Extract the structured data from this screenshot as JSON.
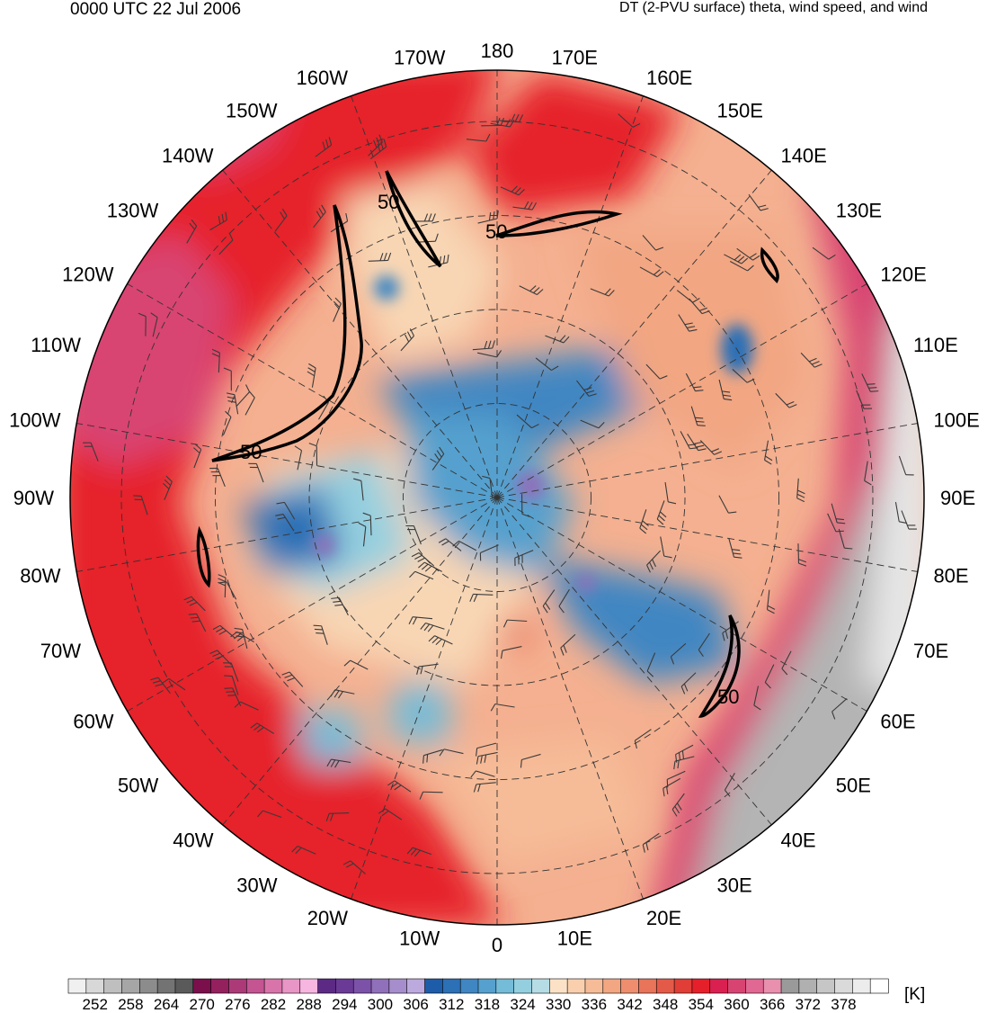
{
  "header": {
    "time_label": "0000 UTC 22 Jul 2006",
    "field_label": "DT (2-PVU surface) theta, wind speed, and wind"
  },
  "map": {
    "projection": "north-polar-stereographic",
    "longitude_labels": [
      "180",
      "170E",
      "160E",
      "150E",
      "140E",
      "130E",
      "120E",
      "110E",
      "100E",
      "90E",
      "80E",
      "70E",
      "60E",
      "50E",
      "40E",
      "30E",
      "20E",
      "10E",
      "0",
      "10W",
      "20W",
      "30W",
      "40W",
      "50W",
      "60W",
      "70W",
      "80W",
      "90W",
      "100W",
      "110W",
      "120W",
      "130W",
      "140W",
      "150W",
      "160W",
      "170W"
    ],
    "contour_label": "50",
    "colors": {
      "cold_core": "#2a6bb8",
      "cool": "#7fbcd8",
      "neutral": "#f8d6b4",
      "warm": "#f28a6a",
      "hot": "#e8202a",
      "magenta": "#d8407a",
      "grey": "#a8a8a8"
    }
  },
  "colorbar": {
    "levels": [
      "252",
      "258",
      "264",
      "270",
      "276",
      "282",
      "288",
      "294",
      "300",
      "306",
      "312",
      "318",
      "324",
      "330",
      "336",
      "342",
      "348",
      "354",
      "360",
      "366",
      "372",
      "378"
    ],
    "colors": [
      "#f0f0f0",
      "#d8d8d8",
      "#bfbfbf",
      "#a6a6a6",
      "#8c8c8c",
      "#737373",
      "#5a5a5a",
      "#7a0f4c",
      "#94205e",
      "#ad3a78",
      "#c45492",
      "#d974ab",
      "#e896c6",
      "#f6b6e0",
      "#5c2a84",
      "#6b3a96",
      "#7c52a8",
      "#9070ba",
      "#a68ecc",
      "#bcaade",
      "#1d5ca8",
      "#2c70b6",
      "#3f86c2",
      "#55a0ce",
      "#74bcd8",
      "#94cfdf",
      "#b6dde6",
      "#fbe2c6",
      "#f9cfae",
      "#f6bc98",
      "#f2a682",
      "#ee8e6e",
      "#e8745a",
      "#e45a48",
      "#e03e36",
      "#e6202a",
      "#d92050",
      "#d84472",
      "#e06892",
      "#e890ae",
      "#9a9a9a",
      "#b0b0b0",
      "#c6c6c6",
      "#dadada",
      "#ececec",
      "#ffffff"
    ],
    "unit": "[K]"
  }
}
